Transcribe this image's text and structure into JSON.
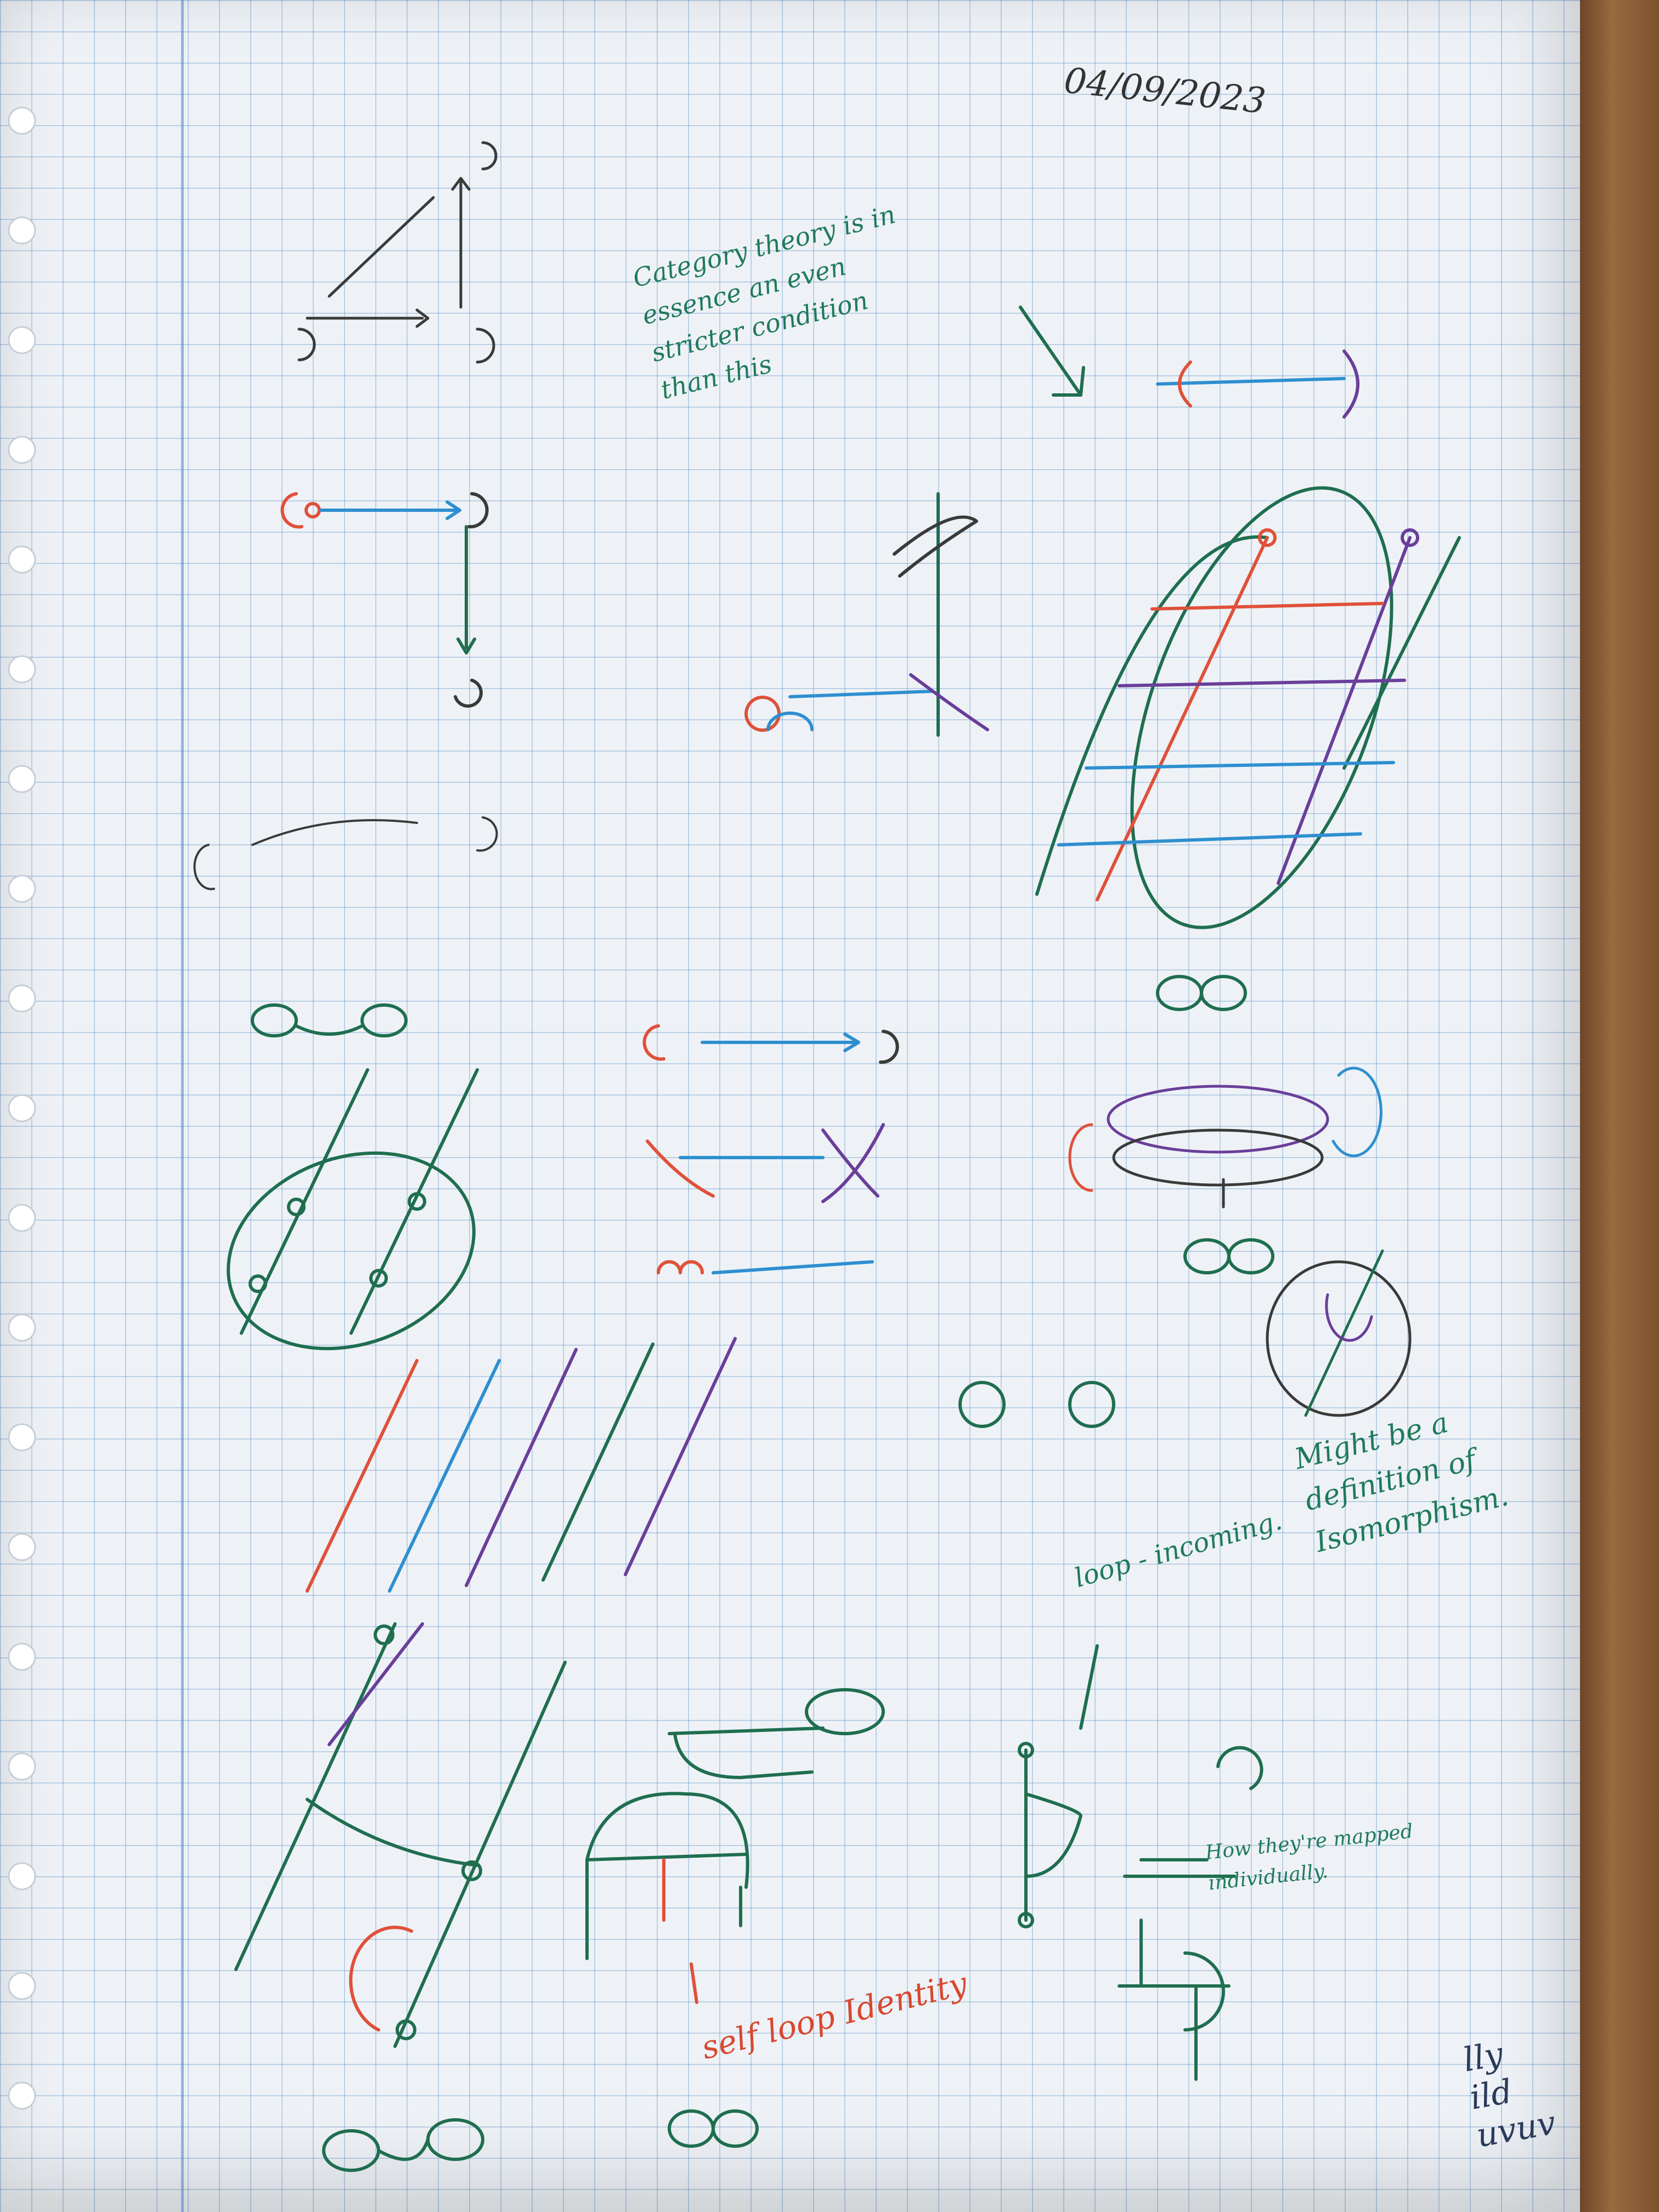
{
  "notes": {
    "date": "04/09/2023",
    "category": "Category theory is in\nessence an even\nstricter condition\nthan this",
    "isomorphism": "Might be a\ndefinition of\nIsomorphism.",
    "loop": "loop - incoming.",
    "mapped": "How they're mapped\nindividually.",
    "selfloop": "self loop Identity",
    "scribble": "lly\nild\nuvuv"
  },
  "ink": {
    "green": "#1f6e4f",
    "red": "#e0503a",
    "blue": "#2e8fd0",
    "purple": "#6a3e9a",
    "black": "#3a3a3a"
  }
}
